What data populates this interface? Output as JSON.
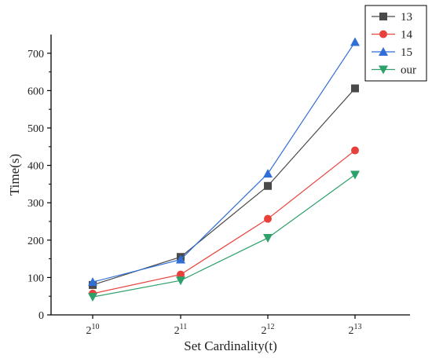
{
  "chart_data": {
    "type": "line",
    "xlabel": "Set Cardinality(t)",
    "ylabel": "Time(s)",
    "categories": [
      {
        "base": "2",
        "exp": "10"
      },
      {
        "base": "2",
        "exp": "11"
      },
      {
        "base": "2",
        "exp": "12"
      },
      {
        "base": "2",
        "exp": "13"
      }
    ],
    "ylim": [
      0,
      750
    ],
    "yticks": [
      0,
      100,
      200,
      300,
      400,
      500,
      600,
      700
    ],
    "grid": false,
    "legend_position": "top-right",
    "series": [
      {
        "name": "13",
        "marker": "square",
        "color": "#4a4a4a",
        "values": [
          80,
          155,
          345,
          606
        ]
      },
      {
        "name": "14",
        "marker": "circle",
        "color": "#e8413c",
        "values": [
          57,
          108,
          257,
          440
        ]
      },
      {
        "name": "15",
        "marker": "triangle-up",
        "color": "#2f6fd6",
        "values": [
          88,
          148,
          378,
          730
        ]
      },
      {
        "name": "our",
        "marker": "triangle-down",
        "color": "#2ea06a",
        "values": [
          48,
          92,
          206,
          375
        ]
      }
    ]
  }
}
